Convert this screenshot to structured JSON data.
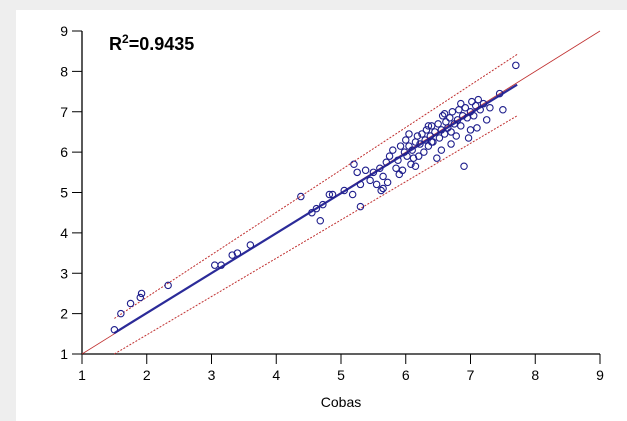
{
  "chart_data": {
    "type": "scatter",
    "title": "",
    "annotation": {
      "r2_prefix": "R",
      "r2_power": "2",
      "r2_value": "=0.9435"
    },
    "xlabel": "Cobas",
    "ylabel": "",
    "xlim": [
      1,
      9
    ],
    "ylim": [
      1,
      9
    ],
    "xticks": [
      "1",
      "2",
      "3",
      "4",
      "5",
      "6",
      "7",
      "8",
      "9"
    ],
    "yticks": [
      "1",
      "2",
      "3",
      "4",
      "5",
      "6",
      "7",
      "8",
      "9"
    ],
    "grid": false,
    "colors": {
      "points": "#1e1e8c",
      "fit_line": "#2b2b99",
      "confidence_lines": "#c03030",
      "identity_line": "#c03030",
      "axes": "#000000"
    },
    "identity_line": {
      "x": [
        1,
        9
      ],
      "y": [
        1,
        9
      ]
    },
    "fit_line": {
      "x": [
        1.5,
        7.72
      ],
      "y": [
        1.52,
        7.67
      ]
    },
    "upper_band": {
      "x": [
        1.5,
        7.72
      ],
      "y": [
        1.88,
        8.42
      ]
    },
    "lower_band": {
      "x": [
        1.5,
        7.72
      ],
      "y": [
        1.0,
        6.9
      ]
    },
    "points": [
      [
        1.5,
        1.6
      ],
      [
        1.6,
        2.0
      ],
      [
        1.75,
        2.25
      ],
      [
        1.9,
        2.4
      ],
      [
        1.92,
        2.5
      ],
      [
        2.33,
        2.7
      ],
      [
        3.05,
        3.2
      ],
      [
        3.15,
        3.2
      ],
      [
        3.32,
        3.45
      ],
      [
        3.4,
        3.5
      ],
      [
        3.6,
        3.7
      ],
      [
        4.38,
        4.9
      ],
      [
        4.55,
        4.5
      ],
      [
        4.62,
        4.6
      ],
      [
        4.68,
        4.3
      ],
      [
        4.72,
        4.7
      ],
      [
        4.82,
        4.95
      ],
      [
        4.87,
        4.95
      ],
      [
        5.05,
        5.05
      ],
      [
        5.18,
        4.95
      ],
      [
        5.2,
        5.7
      ],
      [
        5.25,
        5.5
      ],
      [
        5.3,
        4.65
      ],
      [
        5.3,
        5.2
      ],
      [
        5.38,
        5.55
      ],
      [
        5.45,
        5.3
      ],
      [
        5.5,
        5.5
      ],
      [
        5.55,
        5.2
      ],
      [
        5.6,
        5.6
      ],
      [
        5.62,
        5.05
      ],
      [
        5.65,
        5.4
      ],
      [
        5.7,
        5.75
      ],
      [
        5.72,
        5.25
      ],
      [
        5.75,
        5.9
      ],
      [
        5.8,
        6.05
      ],
      [
        5.85,
        5.6
      ],
      [
        5.88,
        5.8
      ],
      [
        5.92,
        6.15
      ],
      [
        5.95,
        5.55
      ],
      [
        5.98,
        6.0
      ],
      [
        6.0,
        6.3
      ],
      [
        6.02,
        5.9
      ],
      [
        6.05,
        6.15
      ],
      [
        6.08,
        5.7
      ],
      [
        6.1,
        6.05
      ],
      [
        6.12,
        5.85
      ],
      [
        6.15,
        6.25
      ],
      [
        6.18,
        6.4
      ],
      [
        6.2,
        5.9
      ],
      [
        6.22,
        6.2
      ],
      [
        6.25,
        6.45
      ],
      [
        6.28,
        6.0
      ],
      [
        6.3,
        6.3
      ],
      [
        6.32,
        6.55
      ],
      [
        6.35,
        6.15
      ],
      [
        6.38,
        6.4
      ],
      [
        6.4,
        6.65
      ],
      [
        6.42,
        6.25
      ],
      [
        6.45,
        6.5
      ],
      [
        6.48,
        5.85
      ],
      [
        6.5,
        6.7
      ],
      [
        6.52,
        6.35
      ],
      [
        6.55,
        6.55
      ],
      [
        6.57,
        6.9
      ],
      [
        6.6,
        6.45
      ],
      [
        6.62,
        6.75
      ],
      [
        6.65,
        6.6
      ],
      [
        6.68,
        6.85
      ],
      [
        6.7,
        6.5
      ],
      [
        6.72,
        7.0
      ],
      [
        6.75,
        6.7
      ],
      [
        6.78,
        6.4
      ],
      [
        6.8,
        6.8
      ],
      [
        6.82,
        7.05
      ],
      [
        6.85,
        6.65
      ],
      [
        6.88,
        6.9
      ],
      [
        6.9,
        5.65
      ],
      [
        6.92,
        7.1
      ],
      [
        6.95,
        6.85
      ],
      [
        6.97,
        6.35
      ],
      [
        7.0,
        7.0
      ],
      [
        7.02,
        7.25
      ],
      [
        7.05,
        6.9
      ],
      [
        7.08,
        7.15
      ],
      [
        7.1,
        6.6
      ],
      [
        7.12,
        7.3
      ],
      [
        7.15,
        7.05
      ],
      [
        7.2,
        7.2
      ],
      [
        7.25,
        6.8
      ],
      [
        7.3,
        7.1
      ],
      [
        7.45,
        7.45
      ],
      [
        7.5,
        7.05
      ],
      [
        7.7,
        8.15
      ],
      [
        6.35,
        6.65
      ],
      [
        6.55,
        6.05
      ],
      [
        6.7,
        6.2
      ],
      [
        6.85,
        7.2
      ],
      [
        5.9,
        5.45
      ],
      [
        6.15,
        5.65
      ],
      [
        6.4,
        6.25
      ],
      [
        6.6,
        6.95
      ],
      [
        7.0,
        6.55
      ],
      [
        5.65,
        5.1
      ],
      [
        6.05,
        6.45
      ]
    ]
  }
}
